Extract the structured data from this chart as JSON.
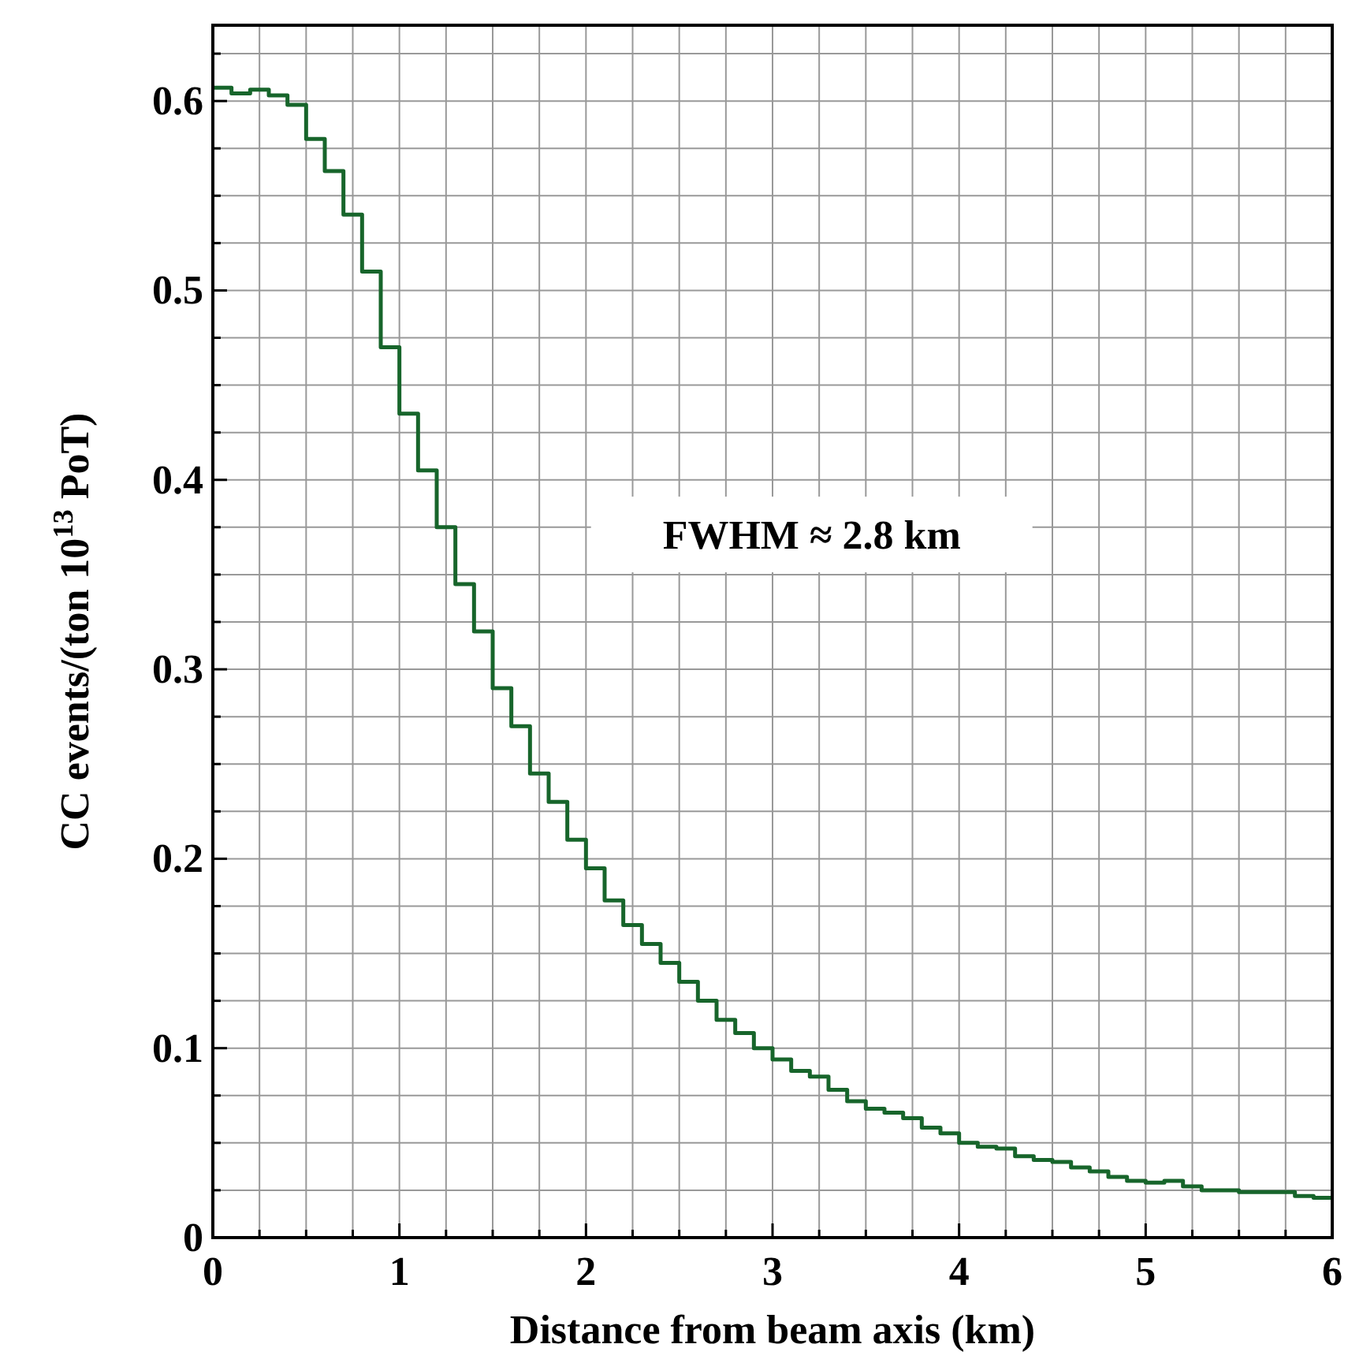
{
  "chart_data": {
    "type": "histogram",
    "xlabel": "Distance from beam axis (km)",
    "ylabel": "CC events/(ton 10$^{13}$ PoT)",
    "color": "#17652b",
    "bins": [
      0,
      0.1,
      0.2,
      0.3,
      0.4,
      0.5,
      0.6,
      0.7,
      0.8,
      0.9,
      1.0,
      1.1,
      1.2,
      1.3,
      1.4,
      1.5,
      1.6,
      1.7,
      1.8,
      1.9,
      2.0,
      2.1,
      2.2,
      2.3,
      2.4,
      2.5,
      2.6,
      2.7,
      2.8,
      2.9,
      3.0,
      3.1,
      3.2,
      3.3,
      3.4,
      3.5,
      3.6,
      3.7,
      3.8,
      3.9,
      4.0,
      4.1,
      4.2,
      4.3,
      4.4,
      4.5,
      4.6,
      4.7,
      4.8,
      4.9,
      5.0,
      5.1,
      5.2,
      5.3,
      5.4,
      5.5,
      5.6,
      5.7,
      5.8,
      5.9,
      6.0
    ],
    "values": [
      0.607,
      0.604,
      0.606,
      0.603,
      0.598,
      0.58,
      0.563,
      0.54,
      0.51,
      0.47,
      0.435,
      0.405,
      0.375,
      0.345,
      0.32,
      0.29,
      0.27,
      0.245,
      0.23,
      0.21,
      0.195,
      0.178,
      0.165,
      0.155,
      0.145,
      0.135,
      0.125,
      0.115,
      0.108,
      0.1,
      0.094,
      0.088,
      0.085,
      0.078,
      0.072,
      0.068,
      0.066,
      0.063,
      0.058,
      0.055,
      0.05,
      0.048,
      0.047,
      0.043,
      0.041,
      0.04,
      0.037,
      0.035,
      0.032,
      0.03,
      0.029,
      0.03,
      0.027,
      0.025,
      0.025,
      0.024,
      0.024,
      0.024,
      0.022,
      0.021
    ],
    "xlim": [
      0,
      6
    ],
    "ylim": [
      0,
      0.64
    ],
    "xticks": [
      0,
      {
        "value": 0.25,
        "label": null
      },
      {
        "value": 0.5,
        "label": null
      },
      {
        "value": 0.75,
        "label": null
      },
      1,
      {
        "value": 1.25,
        "label": null
      },
      {
        "value": 1.5,
        "label": null
      },
      {
        "value": 1.75,
        "label": null
      },
      2,
      {
        "value": 2.25,
        "label": null
      },
      {
        "value": 2.5,
        "label": null
      },
      {
        "value": 2.75,
        "label": null
      },
      3,
      {
        "value": 3.25,
        "label": null
      },
      {
        "value": 3.5,
        "label": null
      },
      {
        "value": 3.75,
        "label": null
      },
      4,
      {
        "value": 4.25,
        "label": null
      },
      {
        "value": 4.5,
        "label": null
      },
      {
        "value": 4.75,
        "label": null
      },
      5,
      {
        "value": 5.25,
        "label": null
      },
      {
        "value": 5.5,
        "label": null
      },
      {
        "value": 5.75,
        "label": null
      },
      6
    ],
    "yticks": [
      0,
      {
        "value": 0.025,
        "label": null
      },
      {
        "value": 0.05,
        "label": null
      },
      {
        "value": 0.075,
        "label": null
      },
      0.1,
      {
        "value": 0.125,
        "label": null
      },
      {
        "value": 0.15,
        "label": null
      },
      {
        "value": 0.175,
        "label": null
      },
      0.2,
      {
        "value": 0.225,
        "label": null
      },
      {
        "value": 0.25,
        "label": null
      },
      {
        "value": 0.275,
        "label": null
      },
      0.3,
      {
        "value": 0.325,
        "label": null
      },
      {
        "value": 0.35,
        "label": null
      },
      {
        "value": 0.375,
        "label": null
      },
      0.4,
      {
        "value": 0.425,
        "label": null
      },
      {
        "value": 0.45,
        "label": null
      },
      {
        "value": 0.475,
        "label": null
      },
      0.5,
      {
        "value": 0.525,
        "label": null
      },
      {
        "value": 0.55,
        "label": null
      },
      {
        "value": 0.575,
        "label": null
      },
      0.6,
      {
        "value": 0.625,
        "label": null
      }
    ],
    "grid": true,
    "annotations": [
      "FWHM ≈ 2.8 km"
    ]
  }
}
